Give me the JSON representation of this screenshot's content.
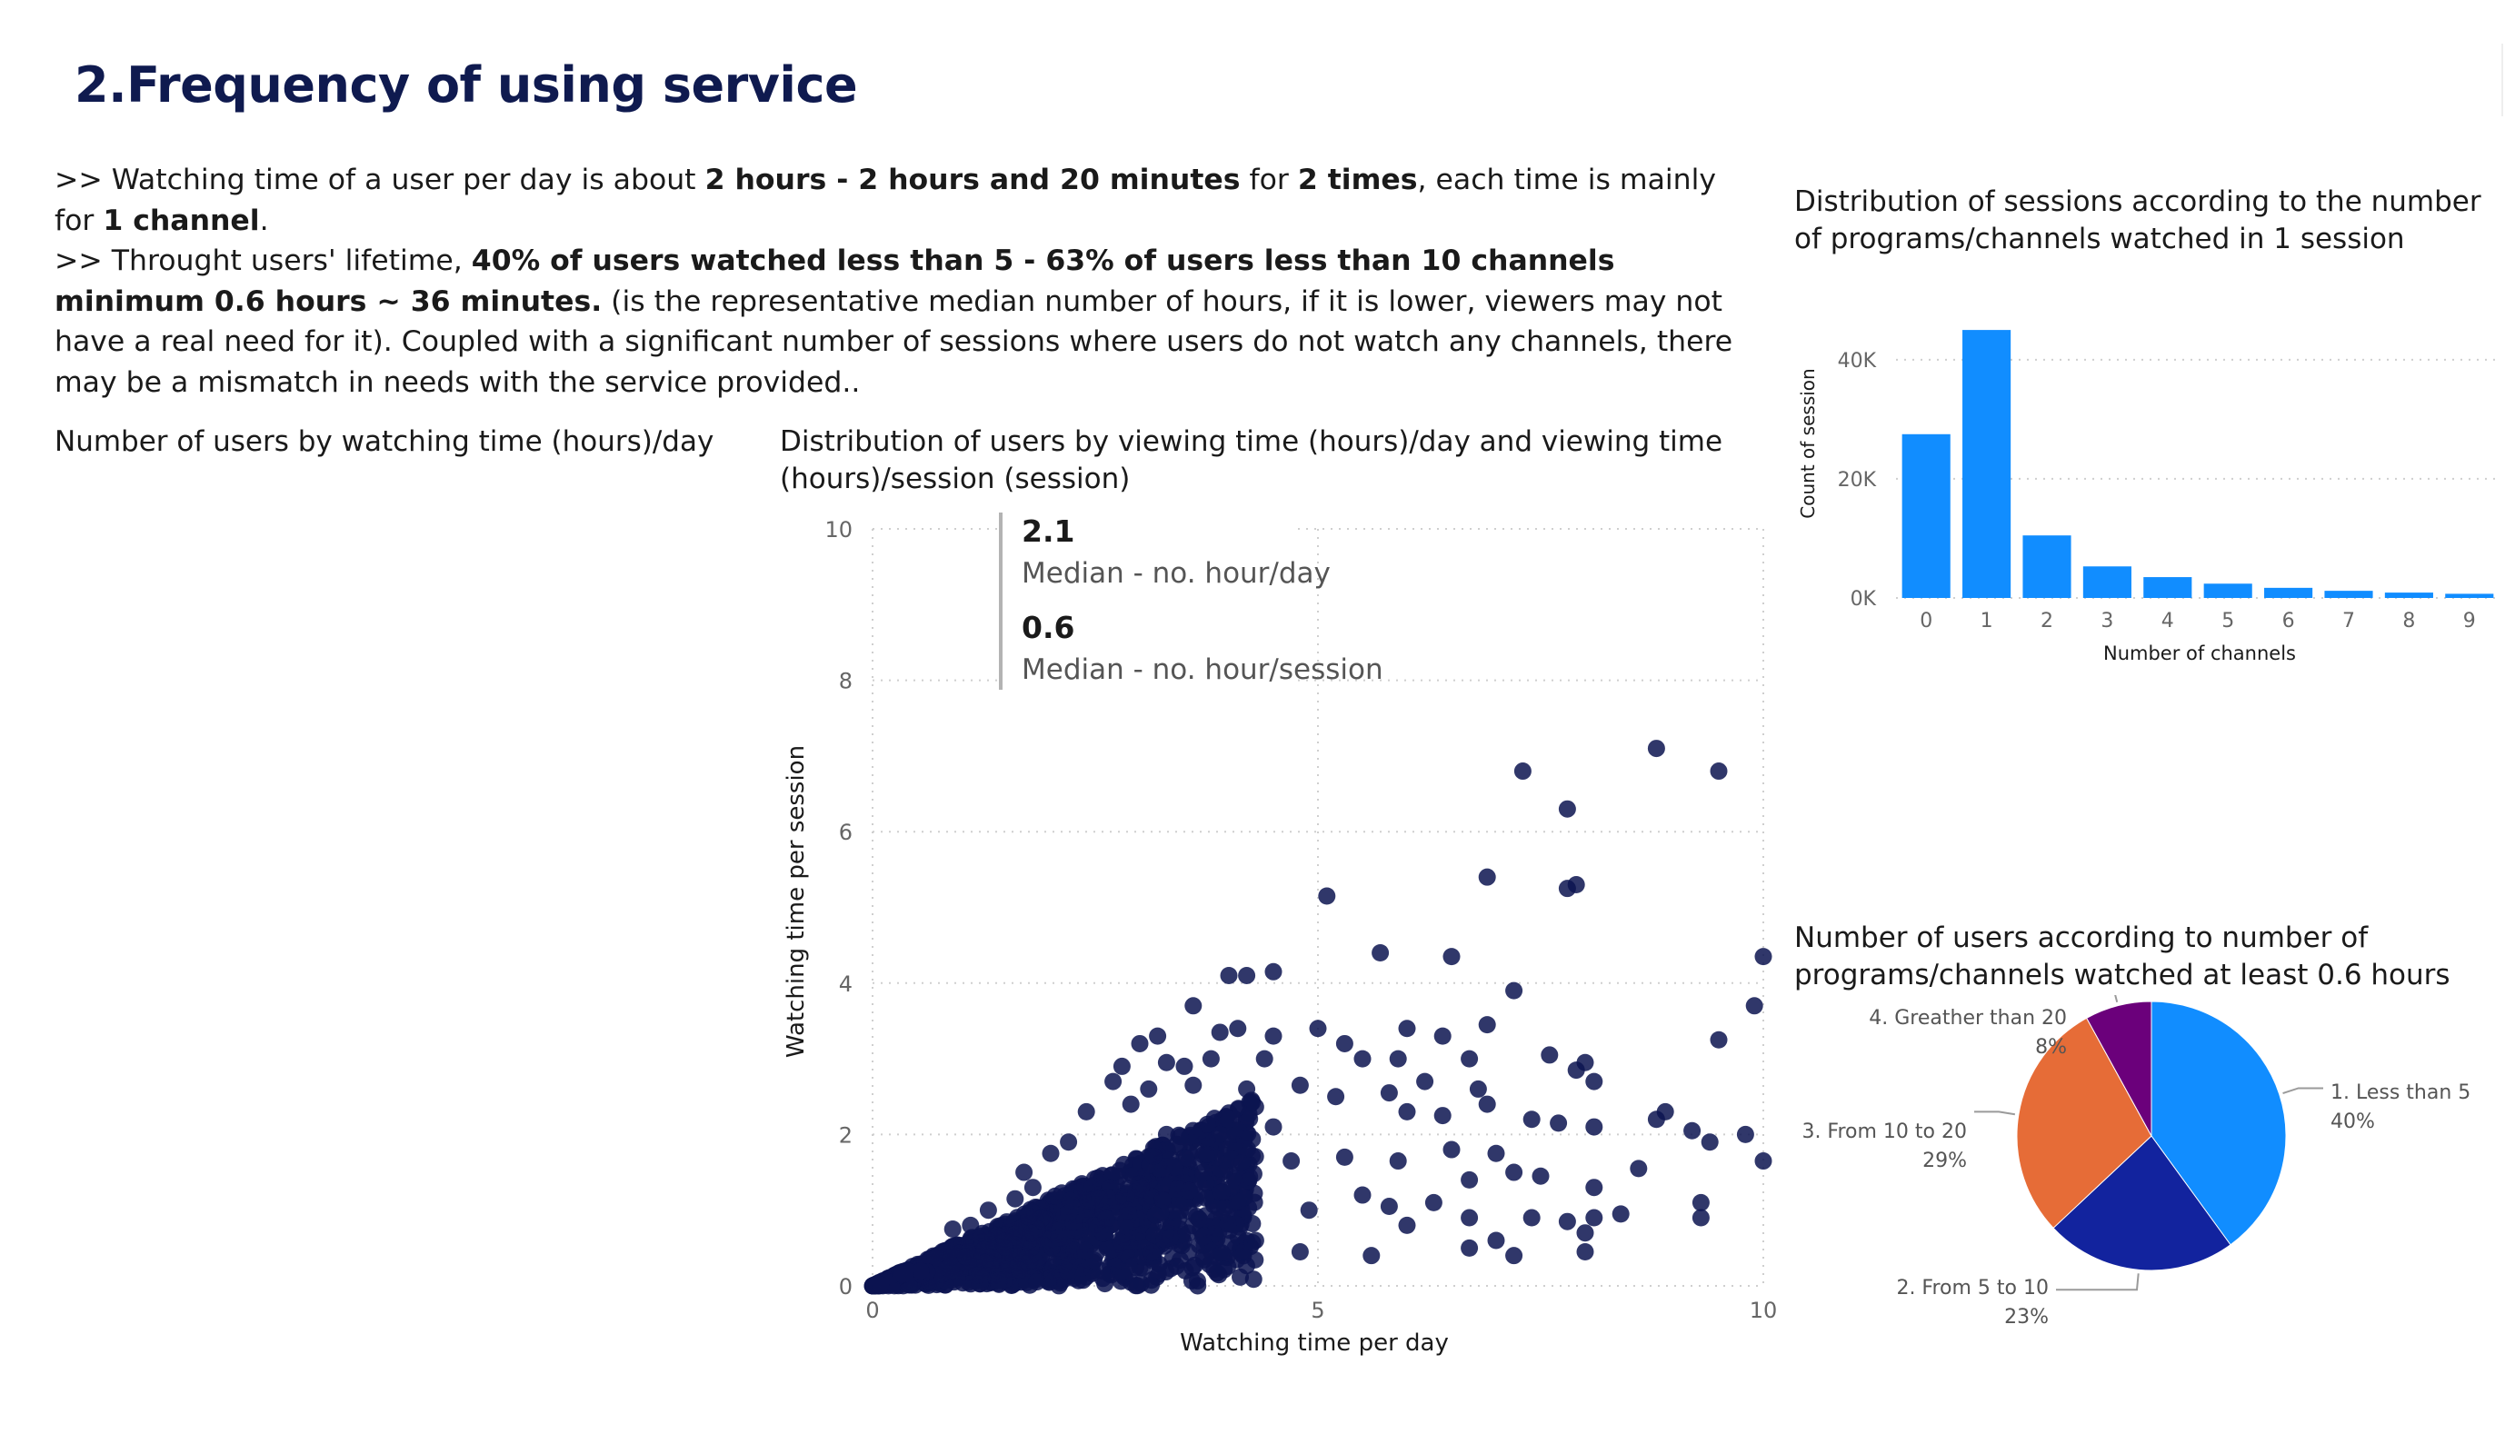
{
  "page": {
    "title": "2.Frequency of using service",
    "intro": {
      "line1": [
        {
          "t": ">> Watching time of a user per day is about  ",
          "b": false
        },
        {
          "t": "2 hours - 2 hours and 20 minutes",
          "b": true
        },
        {
          "t": " for ",
          "b": false
        },
        {
          "t": "2 times",
          "b": true
        },
        {
          "t": ", each time is mainly for ",
          "b": false
        },
        {
          "t": "1 channel",
          "b": true
        },
        {
          "t": ".",
          "b": false
        }
      ],
      "line2": [
        {
          "t": ">> Throught users' lifetime, ",
          "b": false
        },
        {
          "t": "40% of users watched less than 5 - 63% of users less than 10 channels minimum 0.6 hours ~ 36 minutes.",
          "b": true
        },
        {
          "t": " (is the representative median number of hours, if it is lower, viewers may not have a real need for it). Coupled with a significant number of sessions where users do not watch any channels, there may be a mismatch in needs with the service provided..",
          "b": false
        }
      ]
    }
  },
  "users_chart": {
    "title": "Number of users by watching time (hours)/day"
  },
  "kpis": [
    {
      "value": "2.1",
      "label": "Median - no. hour/day"
    },
    {
      "value": "0.6",
      "label": "Median - no. hour/session"
    }
  ],
  "colors": {
    "scatter": "#0c1450",
    "bar": "#118dff",
    "pie": [
      "#118dff",
      "#12239e",
      "#e66c37",
      "#6b007b"
    ]
  },
  "chart_data": [
    {
      "type": "scatter",
      "title": "Distribution of users by viewing time (hours)/day and viewing time (hours)/session (session)",
      "xlabel": "Watching time per day",
      "ylabel": "Watching time per session",
      "xlim": [
        0,
        10
      ],
      "ylim": [
        0,
        10
      ],
      "xticks": [
        "0",
        "5",
        "10"
      ],
      "yticks": [
        "0",
        "2",
        "4",
        "6",
        "8",
        "10"
      ],
      "grid": true,
      "points": [
        [
          8.8,
          7.1
        ],
        [
          7.3,
          6.8
        ],
        [
          9.5,
          6.8
        ],
        [
          7.8,
          6.3
        ],
        [
          7.8,
          5.25
        ],
        [
          7.9,
          5.3
        ],
        [
          6.9,
          5.4
        ],
        [
          5.1,
          5.15
        ],
        [
          5.7,
          4.4
        ],
        [
          6.5,
          4.35
        ],
        [
          10.0,
          4.35
        ],
        [
          4.0,
          4.1
        ],
        [
          4.2,
          4.1
        ],
        [
          4.5,
          4.15
        ],
        [
          3.6,
          3.7
        ],
        [
          7.2,
          3.9
        ],
        [
          9.9,
          3.7
        ],
        [
          3.2,
          3.3
        ],
        [
          3.9,
          3.35
        ],
        [
          4.1,
          3.4
        ],
        [
          4.5,
          3.3
        ],
        [
          5.0,
          3.4
        ],
        [
          5.3,
          3.2
        ],
        [
          6.0,
          3.4
        ],
        [
          6.4,
          3.3
        ],
        [
          6.9,
          3.45
        ],
        [
          3.0,
          3.2
        ],
        [
          2.8,
          2.9
        ],
        [
          3.3,
          2.95
        ],
        [
          3.5,
          2.9
        ],
        [
          3.8,
          3.0
        ],
        [
          4.4,
          3.0
        ],
        [
          5.5,
          3.0
        ],
        [
          5.9,
          3.0
        ],
        [
          6.7,
          3.0
        ],
        [
          7.6,
          3.05
        ],
        [
          8.0,
          2.95
        ],
        [
          9.5,
          3.25
        ],
        [
          7.9,
          2.85
        ],
        [
          8.1,
          2.7
        ],
        [
          6.8,
          2.6
        ],
        [
          6.2,
          2.7
        ],
        [
          5.8,
          2.55
        ],
        [
          2.7,
          2.7
        ],
        [
          3.1,
          2.6
        ],
        [
          3.6,
          2.65
        ],
        [
          4.2,
          2.6
        ],
        [
          4.8,
          2.65
        ],
        [
          5.2,
          2.5
        ],
        [
          6.0,
          2.3
        ],
        [
          6.4,
          2.25
        ],
        [
          6.9,
          2.4
        ],
        [
          7.4,
          2.2
        ],
        [
          7.7,
          2.15
        ],
        [
          8.1,
          2.1
        ],
        [
          8.8,
          2.2
        ],
        [
          8.9,
          2.3
        ],
        [
          9.2,
          2.05
        ],
        [
          9.8,
          2.0
        ],
        [
          10.0,
          1.65
        ],
        [
          9.4,
          1.9
        ],
        [
          8.6,
          1.55
        ],
        [
          8.1,
          1.3
        ],
        [
          7.5,
          1.45
        ],
        [
          7.2,
          1.5
        ],
        [
          7.0,
          1.75
        ],
        [
          6.7,
          1.4
        ],
        [
          6.3,
          1.1
        ],
        [
          6.0,
          0.8
        ],
        [
          6.7,
          0.9
        ],
        [
          7.0,
          0.6
        ],
        [
          7.4,
          0.9
        ],
        [
          7.8,
          0.85
        ],
        [
          8.1,
          0.9
        ],
        [
          8.4,
          0.95
        ],
        [
          8.0,
          0.7
        ],
        [
          8.0,
          0.45
        ],
        [
          7.2,
          0.4
        ],
        [
          6.7,
          0.5
        ],
        [
          5.6,
          0.4
        ],
        [
          9.3,
          1.1
        ],
        [
          9.3,
          0.9
        ],
        [
          6.5,
          1.8
        ],
        [
          5.9,
          1.65
        ],
        [
          5.3,
          1.7
        ],
        [
          4.7,
          1.65
        ],
        [
          4.9,
          1.0
        ],
        [
          5.5,
          1.2
        ],
        [
          5.8,
          1.05
        ],
        [
          4.5,
          2.1
        ],
        [
          4.0,
          2.2
        ],
        [
          3.3,
          2.0
        ],
        [
          2.2,
          1.9
        ],
        [
          2.0,
          1.75
        ],
        [
          1.7,
          1.5
        ],
        [
          1.8,
          1.3
        ],
        [
          2.4,
          2.3
        ],
        [
          2.9,
          2.4
        ],
        [
          1.3,
          1.0
        ],
        [
          1.6,
          1.15
        ],
        [
          0.9,
          0.75
        ],
        [
          1.1,
          0.8
        ],
        [
          4.3,
          0.6
        ],
        [
          4.8,
          0.45
        ]
      ]
    },
    {
      "type": "bar",
      "title": "Distribution of sessions according to the number of programs/channels watched in 1 session",
      "xlabel": "Number of channels",
      "ylabel": "Count of session",
      "categories": [
        "0",
        "1",
        "2",
        "3",
        "4",
        "5",
        "6",
        "7",
        "8",
        "9"
      ],
      "values": [
        27500,
        45000,
        10500,
        5300,
        3500,
        2400,
        1700,
        1200,
        900,
        700
      ],
      "ylim": [
        0,
        47000
      ],
      "yticks": [
        {
          "v": 0,
          "t": "0K"
        },
        {
          "v": 20000,
          "t": "20K"
        },
        {
          "v": 40000,
          "t": "40K"
        }
      ],
      "grid": true
    },
    {
      "type": "pie",
      "title": "Number of users according to number of programs/channels watched at least 0.6 hours",
      "slices": [
        {
          "name": "1. Less than 5",
          "value": 40,
          "label": "40%"
        },
        {
          "name": "2. From 5 to 10",
          "value": 23,
          "label": "23%"
        },
        {
          "name": "3. From 10 to 20",
          "value": 29,
          "label": "29%"
        },
        {
          "name": "4. Greather than 20",
          "value": 8,
          "label": "8%"
        }
      ]
    }
  ]
}
